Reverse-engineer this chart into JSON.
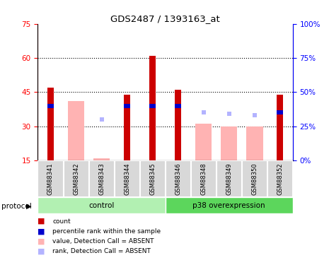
{
  "title": "GDS2487 / 1393163_at",
  "samples": [
    "GSM88341",
    "GSM88342",
    "GSM88343",
    "GSM88344",
    "GSM88345",
    "GSM88346",
    "GSM88348",
    "GSM88349",
    "GSM88350",
    "GSM88352"
  ],
  "count_values": [
    47,
    0,
    0,
    44,
    61,
    46,
    0,
    0,
    0,
    44
  ],
  "percentile_values": [
    40,
    0,
    0,
    40,
    40,
    40,
    0,
    0,
    0,
    35
  ],
  "absent_value_values": [
    0,
    41,
    16,
    0,
    0,
    0,
    31,
    30,
    30,
    0
  ],
  "absent_rank_values": [
    0,
    0,
    30,
    0,
    0,
    0,
    35,
    34,
    33,
    0
  ],
  "ylim_left": [
    15,
    75
  ],
  "ylim_right": [
    0,
    100
  ],
  "yticks_left": [
    15,
    30,
    45,
    60,
    75
  ],
  "yticks_right": [
    0,
    25,
    50,
    75,
    100
  ],
  "ytick_labels_right": [
    "0%",
    "25%",
    "50%",
    "75%",
    "100%"
  ],
  "color_count": "#cc0000",
  "color_percentile": "#0000cc",
  "color_absent_value": "#ffb3b3",
  "color_absent_rank": "#b3b3ff",
  "color_control": "#b2f0b2",
  "color_p38": "#5cd65c",
  "protocol_label": "protocol",
  "legend_items": [
    "count",
    "percentile rank within the sample",
    "value, Detection Call = ABSENT",
    "rank, Detection Call = ABSENT"
  ],
  "legend_colors": [
    "#cc0000",
    "#0000cc",
    "#ffb3b3",
    "#b3b3ff"
  ]
}
